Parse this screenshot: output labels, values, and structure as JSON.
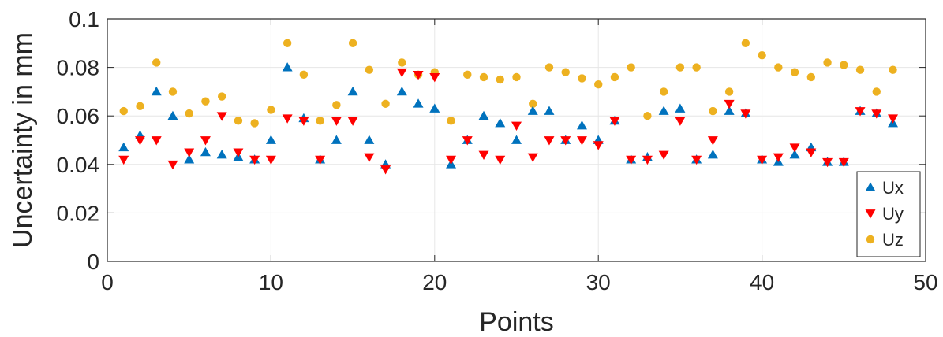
{
  "chart_data": {
    "type": "scatter",
    "xlabel": "Points",
    "ylabel": "Uncertainty in mm",
    "xlim": [
      0,
      50
    ],
    "ylim": [
      0,
      0.1
    ],
    "xticks": [
      "0",
      "10",
      "20",
      "30",
      "40",
      "50"
    ],
    "yticks": [
      "0",
      "0.02",
      "0.04",
      "0.06",
      "0.08",
      "0.1"
    ],
    "grid": true,
    "legend_position": "bottom-right",
    "colors": {
      "Ux": "#0072BD",
      "Uy": "#FF0000",
      "Uz": "#EDB120"
    },
    "series": [
      {
        "name": "Ux",
        "marker": "triangle-up",
        "x": [
          1,
          2,
          3,
          4,
          5,
          6,
          7,
          8,
          9,
          10,
          11,
          12,
          13,
          14,
          15,
          16,
          17,
          18,
          19,
          20,
          21,
          22,
          23,
          24,
          25,
          26,
          27,
          28,
          29,
          30,
          31,
          32,
          33,
          34,
          35,
          36,
          37,
          38,
          39,
          40,
          41,
          42,
          43,
          44,
          45,
          46,
          47,
          48
        ],
        "y": [
          0.047,
          0.052,
          0.07,
          0.06,
          0.042,
          0.045,
          0.044,
          0.043,
          0.042,
          0.05,
          0.08,
          0.059,
          0.042,
          0.05,
          0.07,
          0.05,
          0.04,
          0.07,
          0.065,
          0.063,
          0.04,
          0.05,
          0.06,
          0.057,
          0.05,
          0.062,
          0.062,
          0.05,
          0.056,
          0.05,
          0.058,
          0.042,
          0.043,
          0.062,
          0.063,
          0.042,
          0.044,
          0.062,
          0.061,
          0.042,
          0.041,
          0.044,
          0.047,
          0.041,
          0.041,
          0.062,
          0.061,
          0.057
        ]
      },
      {
        "name": "Uy",
        "marker": "triangle-down",
        "x": [
          1,
          2,
          3,
          4,
          5,
          6,
          7,
          8,
          9,
          10,
          11,
          12,
          13,
          14,
          15,
          16,
          17,
          18,
          19,
          20,
          21,
          22,
          23,
          24,
          25,
          26,
          27,
          28,
          29,
          30,
          31,
          32,
          33,
          34,
          35,
          36,
          37,
          38,
          39,
          40,
          41,
          42,
          43,
          44,
          45,
          46,
          47,
          48
        ],
        "y": [
          0.042,
          0.05,
          0.05,
          0.04,
          0.045,
          0.05,
          0.06,
          0.045,
          0.042,
          0.042,
          0.059,
          0.058,
          0.042,
          0.058,
          0.058,
          0.043,
          0.038,
          0.078,
          0.077,
          0.076,
          0.042,
          0.05,
          0.044,
          0.042,
          0.056,
          0.043,
          0.05,
          0.05,
          0.05,
          0.048,
          0.058,
          0.042,
          0.042,
          0.044,
          0.058,
          0.042,
          0.05,
          0.065,
          0.061,
          0.042,
          0.043,
          0.047,
          0.045,
          0.041,
          0.041,
          0.062,
          0.061,
          0.059
        ]
      },
      {
        "name": "Uz",
        "marker": "circle",
        "x": [
          1,
          2,
          3,
          4,
          5,
          6,
          7,
          8,
          9,
          10,
          11,
          12,
          13,
          14,
          15,
          16,
          17,
          18,
          19,
          20,
          21,
          22,
          23,
          24,
          25,
          26,
          27,
          28,
          29,
          30,
          31,
          32,
          33,
          34,
          35,
          36,
          37,
          38,
          39,
          40,
          41,
          42,
          43,
          44,
          45,
          46,
          47,
          48
        ],
        "y": [
          0.062,
          0.064,
          0.082,
          0.07,
          0.061,
          0.066,
          0.068,
          0.058,
          0.057,
          0.0625,
          0.09,
          0.077,
          0.058,
          0.0645,
          0.09,
          0.079,
          0.065,
          0.082,
          0.077,
          0.078,
          0.058,
          0.077,
          0.076,
          0.075,
          0.076,
          0.065,
          0.08,
          0.078,
          0.0755,
          0.073,
          0.076,
          0.08,
          0.06,
          0.07,
          0.08,
          0.08,
          0.062,
          0.07,
          0.09,
          0.085,
          0.08,
          0.078,
          0.076,
          0.082,
          0.081,
          0.079,
          0.07,
          0.079
        ]
      }
    ]
  }
}
